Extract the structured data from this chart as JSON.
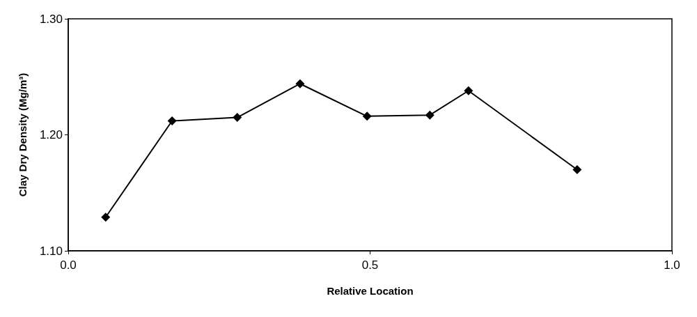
{
  "chart_data": {
    "type": "line",
    "xlabel": "Relative Location",
    "ylabel": "Clay Dry Density (Mg/m³)",
    "x": [
      0.062,
      0.172,
      0.28,
      0.384,
      0.495,
      0.599,
      0.663,
      0.843
    ],
    "series": [
      {
        "color": "#000000",
        "values": [
          1.129,
          1.212,
          1.215,
          1.244,
          1.216,
          1.217,
          1.238,
          1.17
        ]
      }
    ],
    "xlim": [
      0,
      1
    ],
    "xticks": [
      {
        "value": 0,
        "label": "0.0"
      },
      0.5,
      {
        "value": 1,
        "label": "1.0"
      }
    ],
    "ylim": [
      1.1,
      1.3
    ],
    "yticks": [
      {
        "value": 1.1,
        "label": "1.10"
      },
      {
        "value": 1.2,
        "label": "1.20"
      },
      {
        "value": 1.3,
        "label": "1.30"
      }
    ],
    "grid": false,
    "marker": "diamond",
    "line_style": "solid"
  }
}
